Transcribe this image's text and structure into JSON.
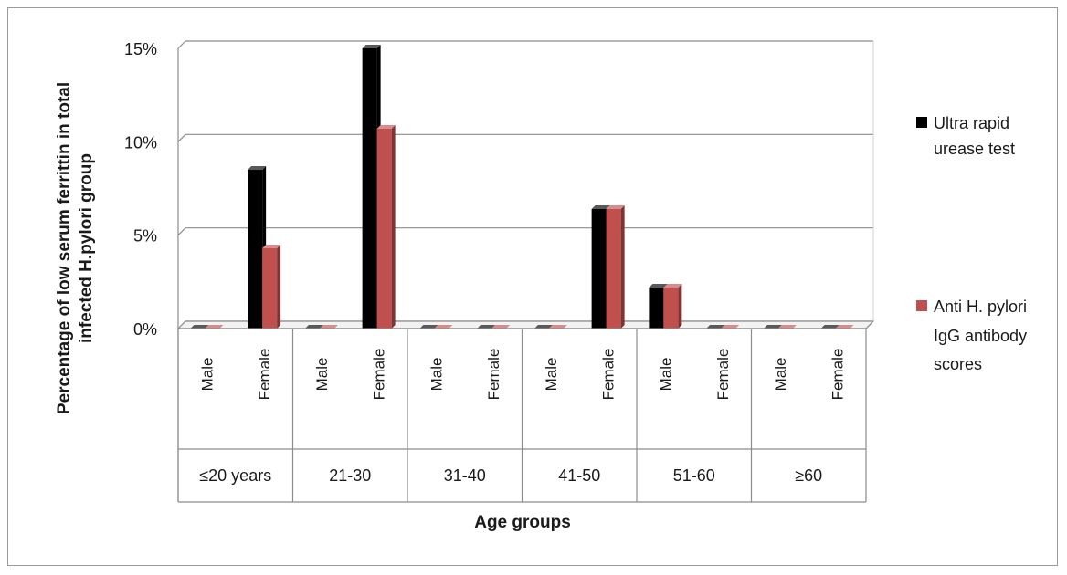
{
  "chart_data": {
    "type": "bar",
    "title": "",
    "xlabel": "Age groups",
    "ylabel_lines": [
      "Percentage of low serum ferrittin in total",
      "infected H.pylori group"
    ],
    "ylim": [
      0,
      15
    ],
    "yticks": [
      0,
      5,
      10,
      15
    ],
    "ytick_labels": [
      "0%",
      "5%",
      "10%",
      "15%"
    ],
    "grid": true,
    "legend_position": "right",
    "groups": [
      "≤20 years",
      "21-30",
      "31-40",
      "41-50",
      "51-60",
      "≥60"
    ],
    "categories": [
      "Male",
      "Female",
      "Male",
      "Female",
      "Male",
      "Female",
      "Male",
      "Female",
      "Male",
      "Female",
      "Male",
      "Female"
    ],
    "series": [
      {
        "name": "Ultra rapid urease test",
        "legend_lines": [
          "Ultra rapid",
          "urease test"
        ],
        "color": "#000000",
        "values": [
          0,
          8.5,
          0,
          15,
          0,
          0,
          0,
          6.4,
          2.2,
          0,
          0,
          0
        ]
      },
      {
        "name": "Anti H. pylori IgG antibody scores",
        "legend_lines": [
          "Anti H. pylori",
          "IgG antibody",
          "scores"
        ],
        "color": "#c0504d",
        "values": [
          0,
          4.3,
          0,
          10.7,
          0,
          0,
          0,
          6.4,
          2.2,
          0,
          0,
          0
        ]
      }
    ]
  }
}
